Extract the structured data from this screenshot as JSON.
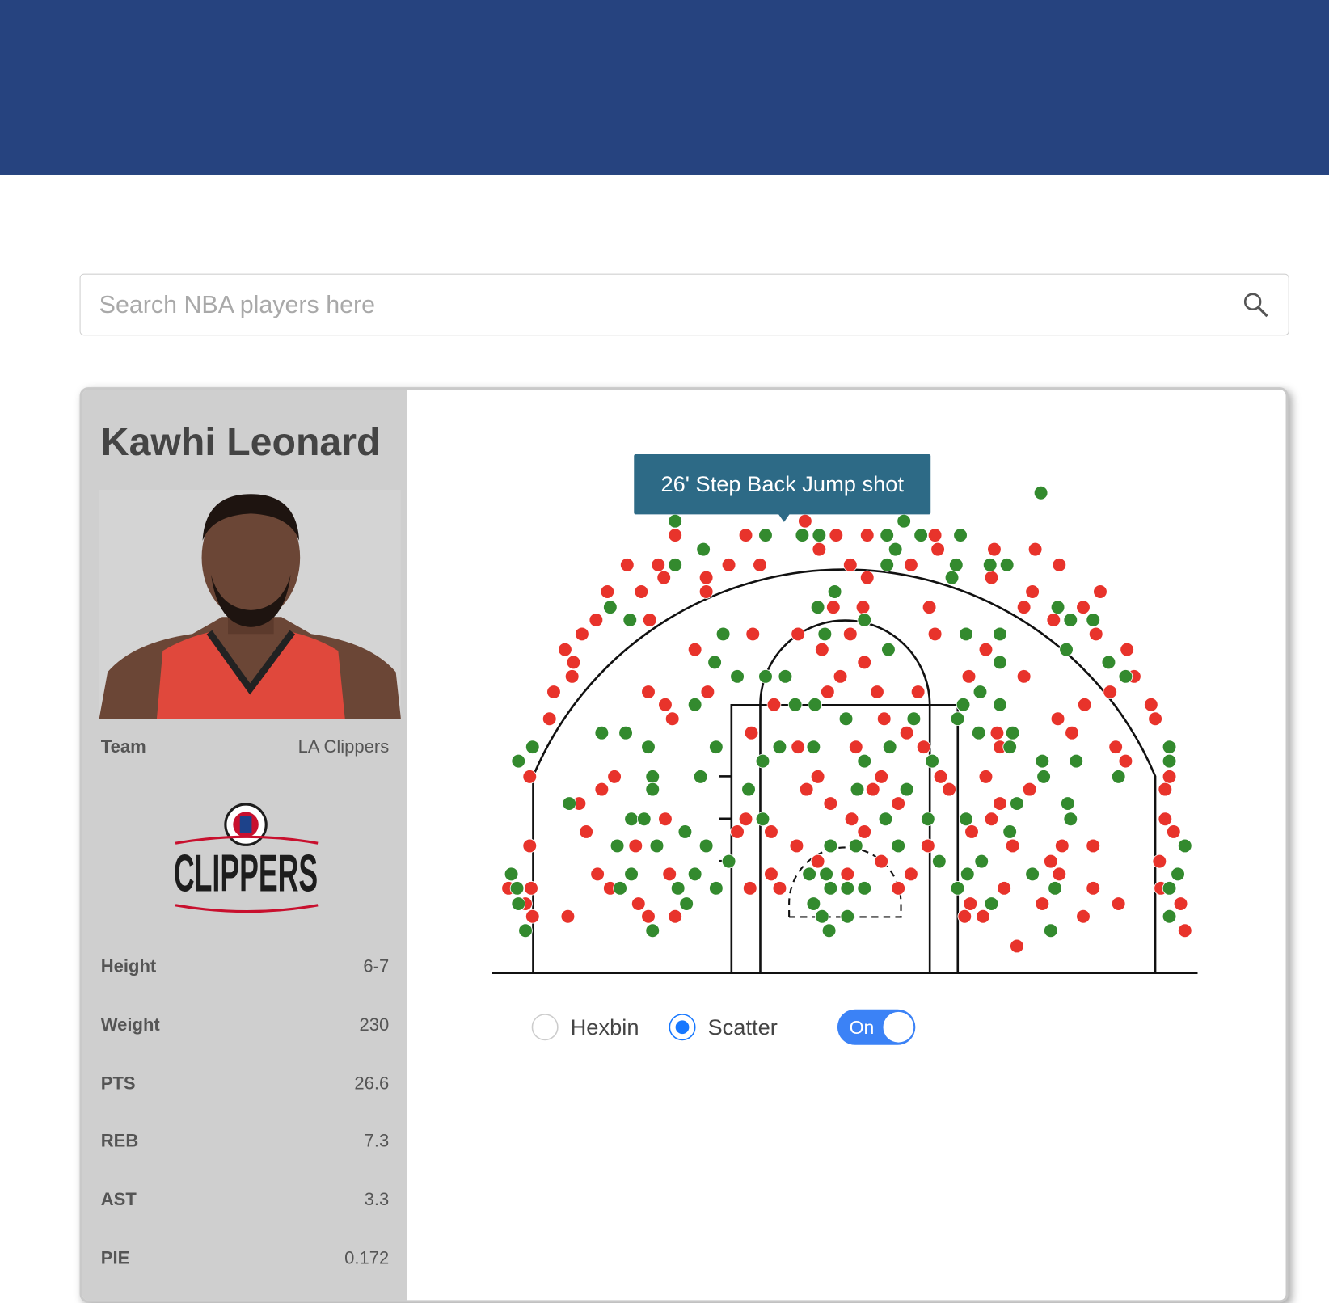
{
  "search": {
    "placeholder": "Search NBA players here"
  },
  "player": {
    "name": "Kawhi Leonard",
    "team_label": "Team",
    "team": "LA Clippers",
    "team_logo": "CLIPPERS",
    "stats": [
      {
        "label": "Height",
        "value": "6-7"
      },
      {
        "label": "Weight",
        "value": "230"
      },
      {
        "label": "PTS",
        "value": "26.6"
      },
      {
        "label": "REB",
        "value": "7.3"
      },
      {
        "label": "AST",
        "value": "3.3"
      },
      {
        "label": "PIE",
        "value": "0.172"
      }
    ]
  },
  "controls": {
    "options": [
      "Hexbin",
      "Scatter"
    ],
    "selected": 1,
    "toggle": "On"
  },
  "chart_data": {
    "type": "scatter",
    "tooltip": "26' Step Back Jump shot",
    "xlim": [
      -250,
      250
    ],
    "ylim": [
      -53,
      317
    ],
    "series": [
      {
        "color": "#e8332b",
        "x": [
          -120,
          -70,
          -28,
          -6,
          16,
          64,
          -154,
          -132,
          -82,
          -60,
          4,
          47,
          152,
          135,
          106,
          -18,
          66,
          -128,
          -98,
          16,
          104,
          -168,
          -144,
          -98,
          133,
          181,
          169,
          127,
          -138,
          -176,
          -186,
          -198,
          -192,
          -193,
          -206,
          -209,
          -223,
          148,
          178,
          200,
          205,
          217,
          220,
          -8,
          13,
          60,
          64,
          4,
          -33,
          -65,
          -106,
          100,
          14,
          -16,
          88,
          127,
          -3,
          -97,
          -12,
          23,
          52,
          -139,
          170,
          188,
          -127,
          -50,
          28,
          151,
          161,
          -122,
          -66,
          44,
          108,
          -33,
          8,
          56,
          110,
          192,
          199,
          230,
          227,
          -163,
          -172,
          -19,
          26,
          68,
          100,
          -27,
          20,
          74,
          131,
          -188,
          -10,
          38,
          110,
          -127,
          -70,
          5,
          104,
          227,
          -183,
          -76,
          -52,
          14,
          90,
          233,
          -223,
          -148,
          -34,
          59,
          119,
          154,
          176,
          -19,
          26,
          146,
          223,
          -175,
          -124,
          -52,
          2,
          47,
          152,
          -238,
          -222,
          -166,
          -67,
          -46,
          38,
          113,
          176,
          224,
          -226,
          -146,
          89,
          140,
          194,
          238,
          -221,
          -196,
          -139,
          -120,
          85,
          98,
          169,
          122,
          241
        ],
        "y": [
          257,
          257,
          267,
          257,
          257,
          257,
          236,
          236,
          236,
          236,
          236,
          236,
          236,
          247,
          247,
          247,
          247,
          227,
          227,
          227,
          227,
          217,
          217,
          217,
          217,
          217,
          206,
          206,
          197,
          197,
          187,
          176,
          167,
          157,
          146,
          127,
          86,
          197,
          187,
          176,
          157,
          137,
          127,
          206,
          206,
          206,
          187,
          187,
          187,
          187,
          176,
          176,
          167,
          176,
          157,
          157,
          157,
          146,
          146,
          146,
          146,
          146,
          137,
          146,
          137,
          137,
          127,
          127,
          117,
          127,
          117,
          117,
          117,
          107,
          107,
          107,
          107,
          107,
          97,
          86,
          77,
          86,
          77,
          86,
          86,
          86,
          86,
          77,
          77,
          77,
          77,
          67,
          67,
          67,
          67,
          56,
          56,
          56,
          56,
          56,
          47,
          47,
          47,
          47,
          47,
          47,
          37,
          37,
          37,
          37,
          37,
          37,
          37,
          26,
          26,
          26,
          26,
          17,
          17,
          17,
          17,
          17,
          17,
          7,
          7,
          7,
          7,
          7,
          7,
          7,
          7,
          7,
          -4,
          -4,
          -4,
          -4,
          -4,
          -4,
          -13,
          -13,
          -13,
          -13,
          -13,
          -13,
          -13,
          -34,
          -23
        ]
      },
      {
        "color": "#338a2e",
        "x": [
          -120,
          42,
          139,
          -56,
          -30,
          -18,
          30,
          54,
          82,
          -100,
          36,
          30,
          79,
          103,
          115,
          -120,
          76,
          -166,
          -152,
          151,
          160,
          176,
          157,
          187,
          199,
          -7,
          -19,
          14,
          -14,
          31,
          86,
          110,
          -86,
          -92,
          110,
          -76,
          -56,
          -42,
          96,
          84,
          110,
          -106,
          -35,
          -21,
          1,
          49,
          80,
          95,
          119,
          -172,
          -155,
          -139,
          -221,
          -231,
          -91,
          -46,
          -22,
          32,
          117,
          164,
          140,
          -58,
          14,
          62,
          -136,
          -102,
          141,
          194,
          -68,
          9,
          44,
          230,
          230,
          -195,
          -136,
          122,
          158,
          160,
          -58,
          29,
          59,
          86,
          -151,
          -142,
          -113,
          117,
          -161,
          -133,
          -98,
          -10,
          8,
          38,
          -82,
          67,
          97,
          87,
          133,
          241,
          236,
          -236,
          -151,
          -106,
          -25,
          -13,
          -232,
          -159,
          -118,
          -91,
          -10,
          2,
          14,
          80,
          149,
          230,
          -231,
          -112,
          -22,
          104,
          -16,
          2,
          230,
          -226,
          -136,
          -11,
          146
        ],
        "y": [
          267,
          267,
          287,
          257,
          257,
          257,
          257,
          257,
          257,
          247,
          247,
          236,
          236,
          236,
          236,
          236,
          227,
          206,
          197,
          206,
          197,
          197,
          176,
          167,
          157,
          217,
          206,
          197,
          187,
          176,
          187,
          187,
          187,
          167,
          167,
          157,
          157,
          157,
          146,
          137,
          137,
          137,
          137,
          137,
          127,
          127,
          127,
          117,
          117,
          117,
          117,
          107,
          107,
          97,
          107,
          107,
          107,
          107,
          107,
          97,
          97,
          97,
          97,
          97,
          86,
          86,
          86,
          86,
          77,
          77,
          77,
          107,
          97,
          67,
          77,
          67,
          67,
          56,
          56,
          56,
          56,
          56,
          56,
          56,
          47,
          47,
          37,
          37,
          37,
          37,
          37,
          37,
          26,
          26,
          26,
          17,
          17,
          37,
          17,
          17,
          17,
          17,
          17,
          17,
          7,
          7,
          7,
          7,
          7,
          7,
          7,
          7,
          7,
          7,
          -4,
          -4,
          -4,
          -4,
          -13,
          -13,
          -13,
          -23,
          -23,
          -23,
          -23
        ]
      }
    ]
  }
}
